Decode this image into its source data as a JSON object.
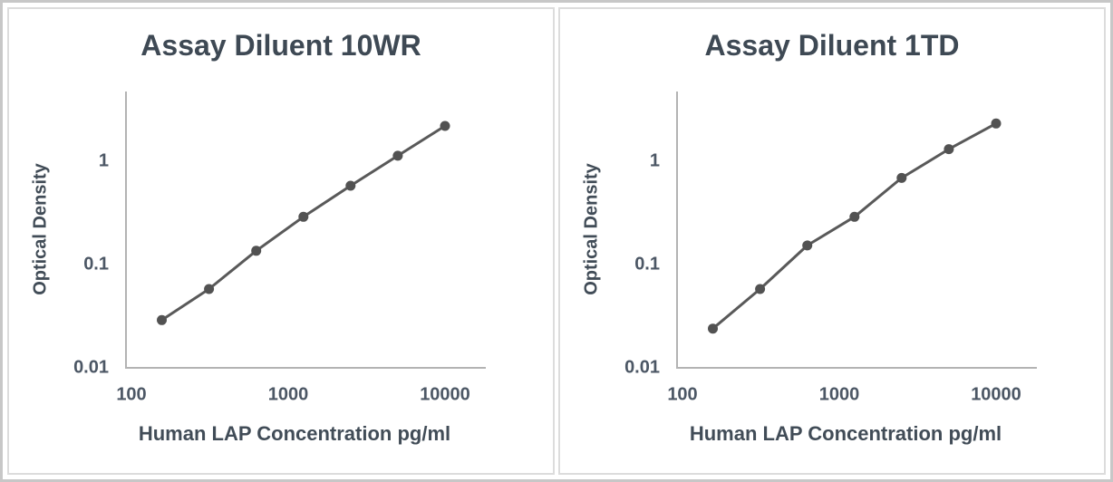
{
  "style": {
    "title_color": "#3e4954",
    "axis_label_color": "#414c57",
    "tick_color": "#4c5765",
    "line_color": "#595959",
    "marker_color": "#525252",
    "axis_color": "#b3b3b3",
    "panel_border": "#dcdcdc",
    "frame_border": "#c7c7c7"
  },
  "chart_data": [
    {
      "type": "line",
      "title": "Assay Diluent 10WR",
      "xlabel": "Human LAP Concentration pg/ml",
      "ylabel": "Optical Density",
      "x_scale": "log",
      "y_scale": "log",
      "xlim": [
        100,
        18000
      ],
      "ylim": [
        0.01,
        4.7
      ],
      "grid": false,
      "legend": false,
      "x_ticks": [
        100,
        1000,
        10000
      ],
      "x_tick_labels": [
        "100",
        "1000",
        "10000"
      ],
      "y_ticks": [
        1,
        0.1,
        0.01
      ],
      "y_tick_labels": [
        "1",
        "0.1",
        "0.01"
      ],
      "x": [
        156.25,
        312.5,
        625,
        1250,
        2500,
        5000,
        10000
      ],
      "y": [
        0.029,
        0.058,
        0.136,
        0.29,
        0.58,
        1.13,
        2.2
      ]
    },
    {
      "type": "line",
      "title": "Assay Diluent 1TD",
      "xlabel": "Human LAP Concentration pg/ml",
      "ylabel": "Optical Density",
      "x_scale": "log",
      "y_scale": "log",
      "xlim": [
        100,
        18000
      ],
      "ylim": [
        0.01,
        4.7
      ],
      "grid": false,
      "legend": false,
      "x_ticks": [
        100,
        1000,
        10000
      ],
      "x_tick_labels": [
        "100",
        "1000",
        "10000"
      ],
      "y_ticks": [
        1,
        0.1,
        0.01
      ],
      "y_tick_labels": [
        "1",
        "0.1",
        "0.01"
      ],
      "x": [
        156.25,
        312.5,
        625,
        1250,
        2500,
        5000,
        10000
      ],
      "y": [
        0.024,
        0.058,
        0.153,
        0.29,
        0.69,
        1.31,
        2.32
      ]
    }
  ]
}
